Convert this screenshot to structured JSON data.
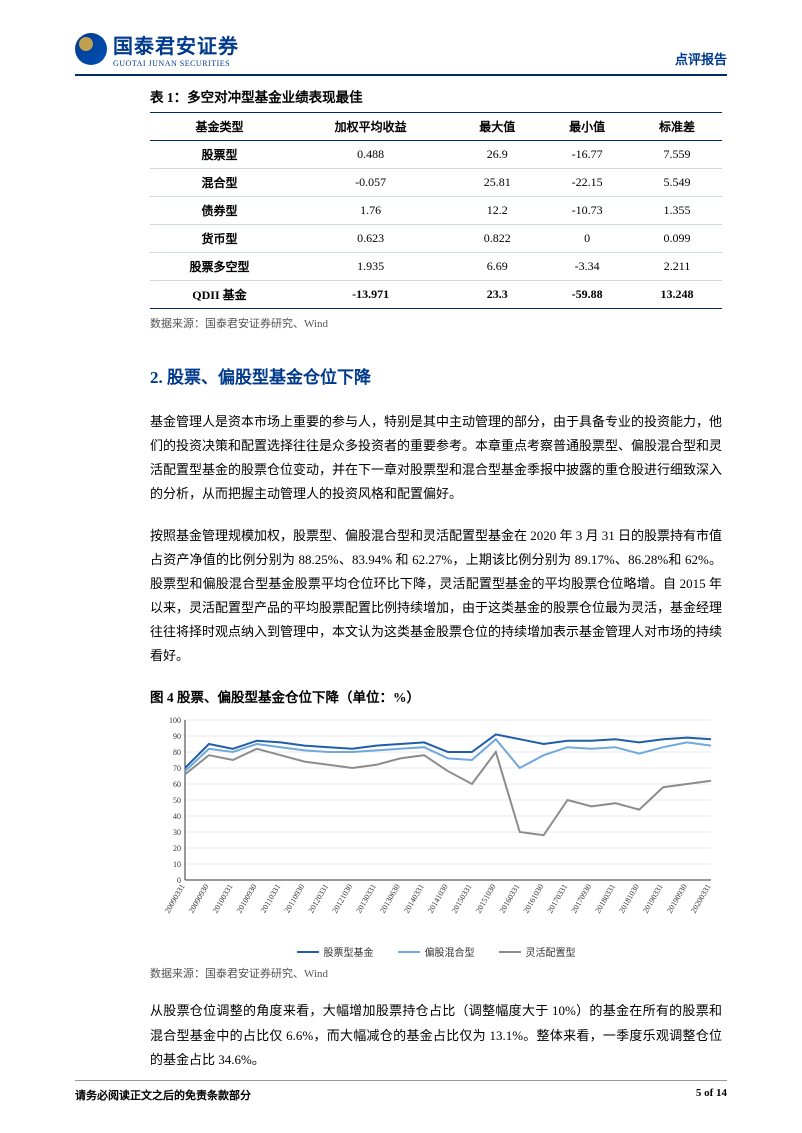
{
  "header": {
    "brand_cn": "国泰君安证券",
    "brand_en": "GUOTAI JUNAN SECURITIES",
    "report_type": "点评报告"
  },
  "table1": {
    "title": "表 1：多空对冲型基金业绩表现最佳",
    "columns": [
      "基金类型",
      "加权平均收益",
      "最大值",
      "最小值",
      "标准差"
    ],
    "rows": [
      [
        "股票型",
        "0.488",
        "26.9",
        "-16.77",
        "7.559"
      ],
      [
        "混合型",
        "-0.057",
        "25.81",
        "-22.15",
        "5.549"
      ],
      [
        "债券型",
        "1.76",
        "12.2",
        "-10.73",
        "1.355"
      ],
      [
        "货币型",
        "0.623",
        "0.822",
        "0",
        "0.099"
      ],
      [
        "股票多空型",
        "1.935",
        "6.69",
        "-3.34",
        "2.211"
      ],
      [
        "QDII 基金",
        "-13.971",
        "23.3",
        "-59.88",
        "13.248"
      ]
    ],
    "source": "数据来源：国泰君安证券研究、Wind"
  },
  "section2": {
    "title": "2.  股票、偏股型基金仓位下降",
    "p1": "基金管理人是资本市场上重要的参与人，特别是其中主动管理的部分，由于具备专业的投资能力，他们的投资决策和配置选择往往是众多投资者的重要参考。本章重点考察普通股票型、偏股混合型和灵活配置型基金的股票仓位变动，并在下一章对股票型和混合型基金季报中披露的重仓股进行细致深入的分析，从而把握主动管理人的投资风格和配置偏好。",
    "p2": "按照基金管理规模加权，股票型、偏股混合型和灵活配置型基金在 2020 年 3 月 31 日的股票持有市值占资产净值的比例分别为 88.25%、83.94% 和 62.27%，上期该比例分别为 89.17%、86.28%和 62%。股票型和偏股混合型基金股票平均仓位环比下降，灵活配置型基金的平均股票仓位略增。自 2015 年以来，灵活配置型产品的平均股票配置比例持续增加，由于这类基金的股票仓位最为灵活，基金经理往往将择时观点纳入到管理中，本文认为这类基金股票仓位的持续增加表示基金管理人对市场的持续看好。"
  },
  "chart4": {
    "title": "图 4 股票、偏股型基金仓位下降（单位：%）",
    "type": "line",
    "ylim": [
      0,
      100
    ],
    "ytick_step": 10,
    "x_labels": [
      "20090331",
      "20090930",
      "20100331",
      "20100930",
      "20110331",
      "20110930",
      "20120331",
      "20121030",
      "20130331",
      "20130630",
      "20140331",
      "20141030",
      "20150331",
      "20151030",
      "20160331",
      "20161030",
      "20170331",
      "20170930",
      "20180331",
      "20181030",
      "20190331",
      "20190930",
      "20200331"
    ],
    "series": [
      {
        "name": "股票型基金",
        "color": "#1f5ea8",
        "width": 2,
        "values": [
          70,
          85,
          82,
          87,
          86,
          84,
          83,
          82,
          84,
          85,
          86,
          80,
          80,
          91,
          88,
          85,
          87,
          87,
          88,
          86,
          88,
          89,
          88
        ]
      },
      {
        "name": "偏股混合型",
        "color": "#6fa8dc",
        "width": 2,
        "values": [
          68,
          82,
          80,
          85,
          83,
          81,
          80,
          80,
          81,
          82,
          83,
          76,
          75,
          88,
          70,
          78,
          83,
          82,
          83,
          79,
          83,
          86,
          84
        ]
      },
      {
        "name": "灵活配置型",
        "color": "#8c8c8c",
        "width": 2,
        "values": [
          66,
          78,
          75,
          82,
          78,
          74,
          72,
          70,
          72,
          76,
          78,
          68,
          60,
          80,
          30,
          28,
          50,
          46,
          48,
          44,
          58,
          60,
          62
        ]
      }
    ],
    "background_color": "#ffffff",
    "grid_color": "#d4d4d4",
    "axis_color": "#333333",
    "label_fontsize": 8,
    "source": "数据来源：国泰君安证券研究、Wind"
  },
  "p3": "从股票仓位调整的角度来看，大幅增加股票持仓占比（调整幅度大于 10%）的基金在所有的股票和混合型基金中的占比仅 6.6%，而大幅减仓的基金占比仅为 13.1%。整体来看，一季度乐观调整仓位的基金占比 34.6%。",
  "footer": {
    "disclaimer": "请务必阅读正文之后的免责条款部分",
    "pager": "5 of 14"
  }
}
